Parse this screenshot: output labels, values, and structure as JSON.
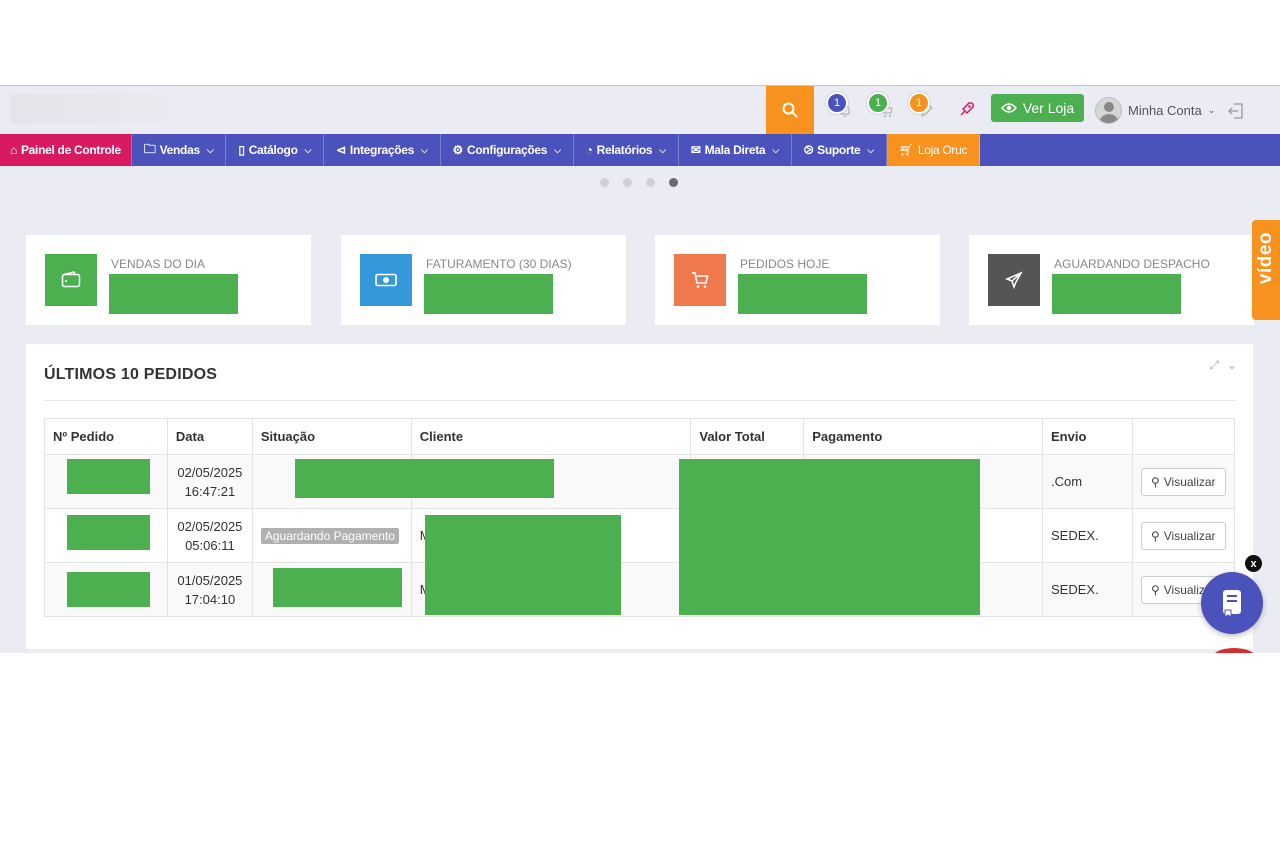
{
  "header": {
    "notifications": [
      {
        "count": "1",
        "color": "#4c52bc",
        "icon": "bell-icon"
      },
      {
        "count": "1",
        "color": "#4caf50",
        "icon": "cart-icon"
      },
      {
        "count": "1",
        "color": "#f7921e",
        "icon": "pencil-icon"
      }
    ],
    "ver_loja": "Ver Loja",
    "account": "Minha Conta"
  },
  "nav": {
    "home": "Painel de Controle",
    "vendas": "Vendas",
    "catalogo": "Catálogo",
    "integracoes": "Integrações",
    "configuracoes": "Configurações",
    "relatorios": "Relatórios",
    "mala_direta": "Mala Direta",
    "suporte": "Suporte",
    "loja": "Loja Oruc"
  },
  "cards": [
    {
      "label": "VENDAS DO DIA",
      "color": "#4caf50",
      "icon": "wallet-icon"
    },
    {
      "label": "FATURAMENTO (30 DIAS)",
      "color": "#3498db",
      "icon": "money-icon"
    },
    {
      "label": "PEDIDOS HOJE",
      "color": "#f0784d",
      "icon": "cart-icon"
    },
    {
      "label": "AGUARDANDO DESPACHO",
      "color": "#555555",
      "icon": "plane-icon"
    }
  ],
  "video_tab": "vídeo",
  "orders": {
    "title": "ÚLTIMOS 10 PEDIDOS",
    "columns": [
      "Nº Pedido",
      "Data",
      "Situação",
      "Cliente",
      "Valor Total",
      "Pagamento",
      "Envio",
      ""
    ],
    "rows": [
      {
        "date": "02/05/2025",
        "time": "16:47:21",
        "status": "",
        "client": "",
        "shipping": ".Com",
        "action": "Visualizar"
      },
      {
        "date": "02/05/2025",
        "time": "05:06:11",
        "status": "Aguardando Pagamento",
        "client": "M",
        "shipping": "SEDEX.",
        "action": "Visualizar"
      },
      {
        "date": "01/05/2025",
        "time": "17:04:10",
        "status": "",
        "client": "M",
        "shipping": "SEDEX.",
        "action": "Visualizar"
      }
    ]
  },
  "fab_close": "x"
}
